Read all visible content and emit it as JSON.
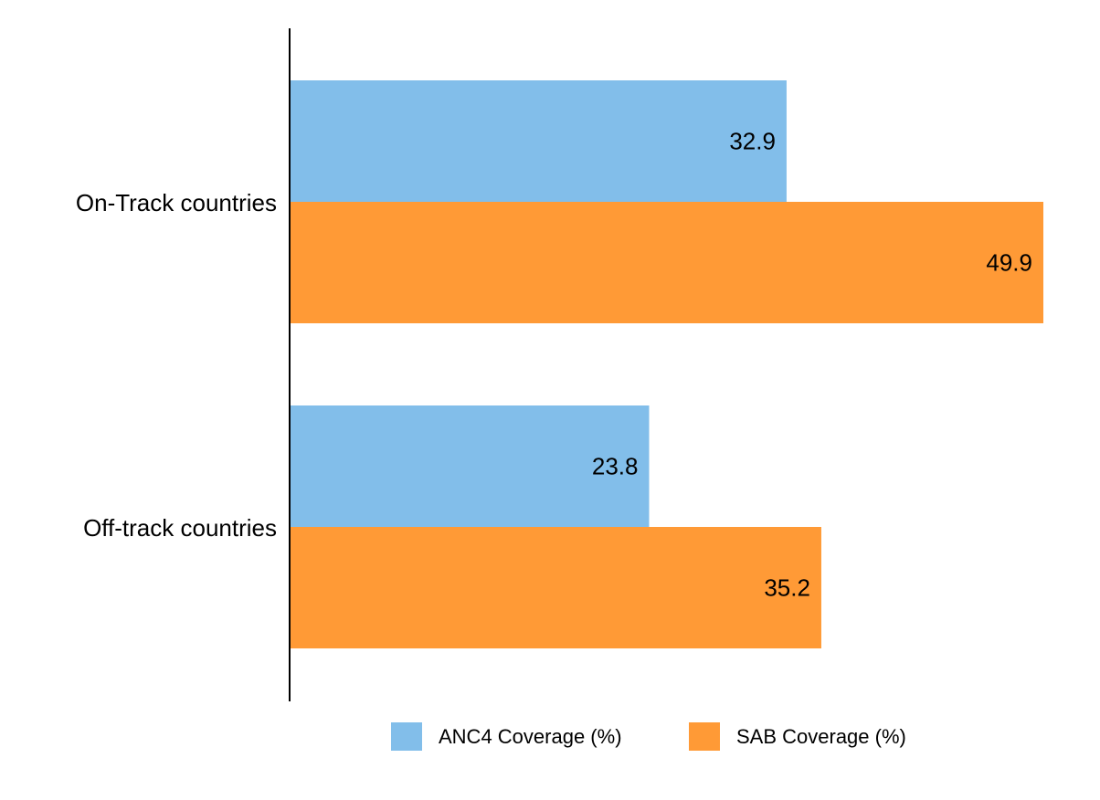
{
  "chart_data": {
    "type": "bar",
    "orientation": "horizontal",
    "categories": [
      "On-Track countries",
      "Off-track countries"
    ],
    "series": [
      {
        "name": "ANC4 Coverage (%)",
        "color": "#82BEEA",
        "values": [
          32.9,
          23.8
        ],
        "labels": [
          "32.9",
          "23.8"
        ]
      },
      {
        "name": "SAB Coverage (%)",
        "color": "#FF9A36",
        "values": [
          49.9,
          35.2
        ],
        "labels": [
          "49.9",
          "35.2"
        ]
      }
    ],
    "xlim": [
      0,
      50
    ],
    "grid": false,
    "legend_position": "bottom",
    "data_labels": "inside-end"
  }
}
